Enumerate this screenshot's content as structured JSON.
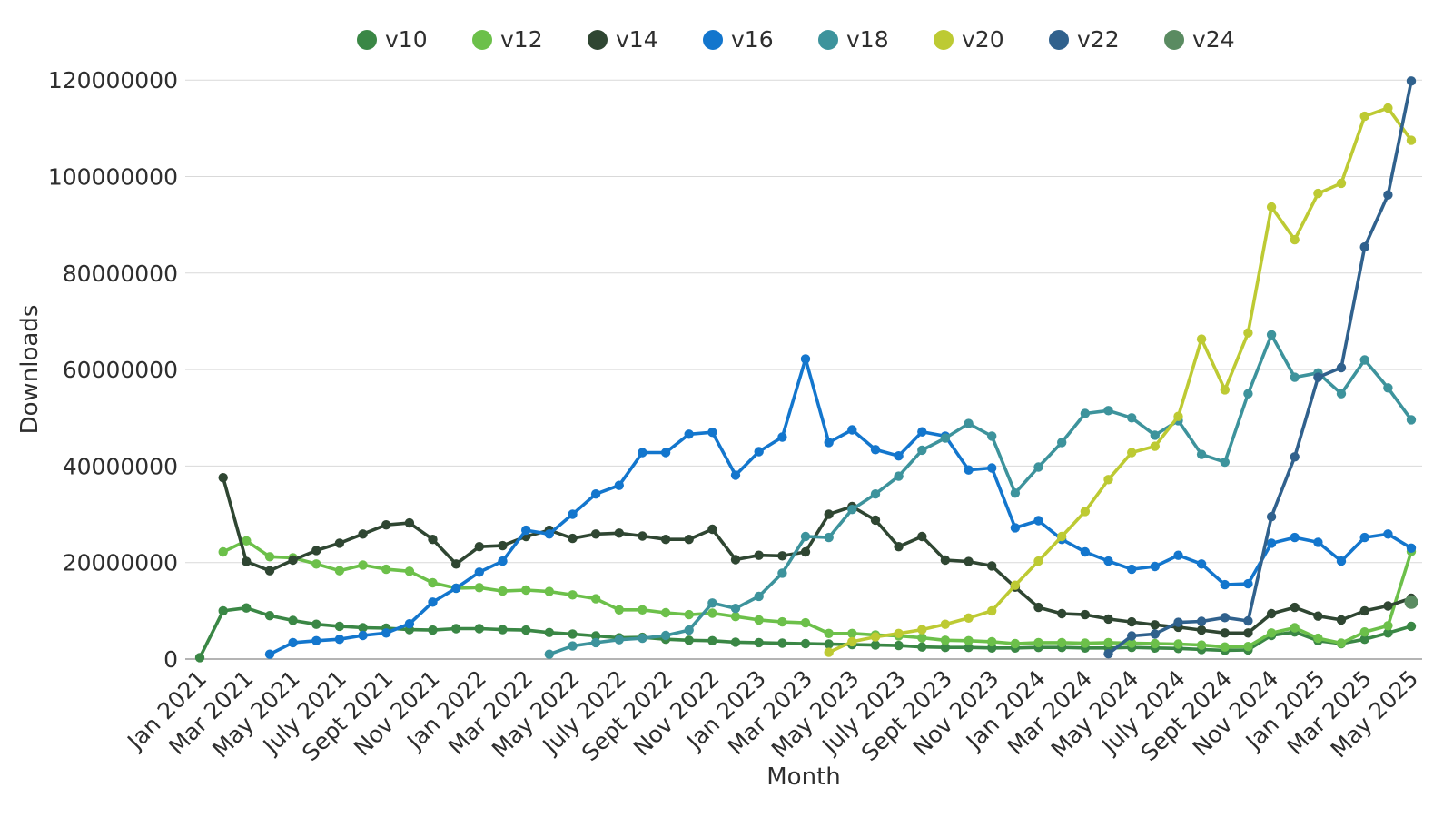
{
  "page": {
    "background": "#ffffff"
  },
  "chart_data": {
    "type": "line",
    "title": "",
    "xlabel": "Month",
    "ylabel": "Downloads",
    "values_unit": "millions_of_downloads",
    "ylim": [
      0,
      120000000
    ],
    "grid": "horizontal",
    "legend_position": "top-center",
    "y_tick_labels": [
      "0",
      "20000000",
      "40000000",
      "60000000",
      "80000000",
      "100000000",
      "120000000"
    ],
    "x_tick_every": 2,
    "x_tick_labels": [
      "Jan 2021",
      "Mar 2021",
      "May 2021",
      "July 2021",
      "Sept 2021",
      "Nov 2021",
      "Jan 2022",
      "Mar 2022",
      "May 2022",
      "July 2022",
      "Sept 2022",
      "Nov 2022",
      "Jan 2023",
      "Mar 2023",
      "May 2023",
      "July 2023",
      "Sept 2023",
      "Nov 2023",
      "Jan 2024",
      "Mar 2024",
      "May 2024",
      "July 2024",
      "Sept 2024",
      "Nov 2024",
      "Jan 2025",
      "Mar 2025",
      "May 2025"
    ],
    "months": [
      "Jan 2021",
      "Feb 2021",
      "Mar 2021",
      "Apr 2021",
      "May 2021",
      "Jun 2021",
      "Jul 2021",
      "Aug 2021",
      "Sep 2021",
      "Oct 2021",
      "Nov 2021",
      "Dec 2021",
      "Jan 2022",
      "Feb 2022",
      "Mar 2022",
      "Apr 2022",
      "May 2022",
      "Jun 2022",
      "Jul 2022",
      "Aug 2022",
      "Sep 2022",
      "Oct 2022",
      "Nov 2022",
      "Dec 2022",
      "Jan 2023",
      "Feb 2023",
      "Mar 2023",
      "Apr 2023",
      "May 2023",
      "Jun 2023",
      "Jul 2023",
      "Aug 2023",
      "Sep 2023",
      "Oct 2023",
      "Nov 2023",
      "Dec 2023",
      "Jan 2024",
      "Feb 2024",
      "Mar 2024",
      "Apr 2024",
      "May 2024",
      "Jun 2024",
      "Jul 2024",
      "Aug 2024",
      "Sep 2024",
      "Oct 2024",
      "Nov 2024",
      "Dec 2024",
      "Jan 2025",
      "Feb 2025",
      "Mar 2025",
      "Apr 2025",
      "May 2025"
    ],
    "series": [
      {
        "name": "v10",
        "color": "#3a8745",
        "values": [
          0.3,
          10.0,
          10.6,
          9.0,
          8.0,
          7.2,
          6.8,
          6.5,
          6.4,
          6.1,
          6.0,
          6.3,
          6.3,
          6.1,
          6.0,
          5.5,
          5.2,
          4.8,
          4.4,
          4.5,
          4.1,
          3.9,
          3.8,
          3.5,
          3.4,
          3.3,
          3.2,
          3.1,
          3.0,
          2.9,
          2.8,
          2.5,
          2.4,
          2.4,
          2.3,
          2.3,
          2.4,
          2.4,
          2.3,
          2.3,
          2.4,
          2.3,
          2.2,
          2.0,
          1.8,
          1.9,
          4.9,
          5.6,
          3.8,
          3.2,
          4.1,
          5.4,
          6.8
        ]
      },
      {
        "name": "v12",
        "color": "#6cc04a",
        "values": [
          null,
          22.2,
          24.5,
          21.2,
          21.0,
          19.7,
          18.3,
          19.5,
          18.6,
          18.2,
          15.8,
          14.7,
          14.8,
          14.1,
          14.3,
          14.0,
          13.3,
          12.5,
          10.2,
          10.2,
          9.6,
          9.2,
          9.5,
          8.8,
          8.1,
          7.7,
          7.5,
          5.3,
          5.3,
          5.0,
          4.8,
          4.4,
          3.9,
          3.8,
          3.6,
          3.2,
          3.4,
          3.4,
          3.3,
          3.4,
          3.3,
          3.2,
          3.1,
          2.9,
          2.5,
          2.6,
          5.4,
          6.5,
          4.3,
          3.3,
          5.6,
          6.9,
          22.3
        ]
      },
      {
        "name": "v14",
        "color": "#2f4632",
        "values": [
          null,
          37.6,
          20.2,
          18.3,
          20.5,
          22.5,
          24.0,
          25.9,
          27.8,
          28.2,
          24.8,
          19.7,
          23.3,
          23.5,
          25.4,
          26.7,
          25.0,
          25.9,
          26.1,
          25.5,
          24.8,
          24.8,
          26.9,
          20.6,
          21.5,
          21.4,
          22.2,
          30.0,
          31.6,
          28.8,
          23.3,
          25.4,
          20.5,
          20.2,
          19.3,
          14.9,
          10.7,
          9.4,
          9.2,
          8.3,
          7.7,
          7.1,
          6.6,
          6.0,
          5.4,
          5.4,
          9.4,
          10.7,
          8.9,
          8.1,
          10.0,
          11.0,
          12.6
        ]
      },
      {
        "name": "v16",
        "color": "#1376cd",
        "values": [
          null,
          null,
          null,
          1.0,
          3.4,
          3.8,
          4.1,
          4.9,
          5.4,
          7.3,
          11.8,
          14.7,
          18.0,
          20.3,
          26.7,
          25.9,
          30.0,
          34.2,
          36.0,
          42.8,
          42.8,
          46.6,
          47.0,
          38.1,
          43.0,
          46.0,
          62.2,
          44.9,
          47.5,
          43.4,
          42.1,
          47.1,
          46.2,
          39.2,
          39.6,
          27.2,
          28.7,
          24.8,
          22.2,
          20.3,
          18.6,
          19.2,
          21.5,
          19.7,
          15.4,
          15.6,
          24.0,
          25.2,
          24.2,
          20.3,
          25.2,
          25.9,
          23.0
        ]
      },
      {
        "name": "v18",
        "color": "#3d939c",
        "values": [
          null,
          null,
          null,
          null,
          null,
          null,
          null,
          null,
          null,
          null,
          null,
          null,
          null,
          null,
          null,
          1.0,
          2.7,
          3.4,
          4.0,
          4.3,
          4.9,
          6.0,
          11.6,
          10.5,
          13.0,
          17.8,
          25.4,
          25.2,
          31.0,
          34.2,
          37.9,
          43.3,
          45.8,
          48.8,
          46.2,
          34.4,
          39.8,
          44.9,
          50.9,
          51.5,
          50.0,
          46.4,
          49.4,
          42.4,
          40.8,
          55.0,
          67.2,
          58.4,
          59.3,
          55.0,
          62.0,
          56.2,
          49.6
        ]
      },
      {
        "name": "v20",
        "color": "#bdca33",
        "values": [
          null,
          null,
          null,
          null,
          null,
          null,
          null,
          null,
          null,
          null,
          null,
          null,
          null,
          null,
          null,
          null,
          null,
          null,
          null,
          null,
          null,
          null,
          null,
          null,
          null,
          null,
          null,
          1.4,
          3.6,
          4.6,
          5.3,
          6.1,
          7.2,
          8.5,
          10.0,
          15.3,
          20.3,
          25.4,
          30.6,
          37.2,
          42.8,
          44.1,
          50.3,
          66.3,
          55.8,
          67.6,
          93.7,
          86.9,
          96.5,
          98.6,
          112.5,
          114.2,
          107.5
        ]
      },
      {
        "name": "v22",
        "color": "#30618d",
        "values": [
          null,
          null,
          null,
          null,
          null,
          null,
          null,
          null,
          null,
          null,
          null,
          null,
          null,
          null,
          null,
          null,
          null,
          null,
          null,
          null,
          null,
          null,
          null,
          null,
          null,
          null,
          null,
          null,
          null,
          null,
          null,
          null,
          null,
          null,
          null,
          null,
          null,
          null,
          null,
          1.1,
          4.8,
          5.2,
          7.6,
          7.8,
          8.6,
          7.9,
          29.5,
          41.9,
          58.4,
          60.4,
          85.4,
          96.2,
          119.8
        ]
      },
      {
        "name": "v24",
        "color": "#5a8b61",
        "values": [
          null,
          null,
          null,
          null,
          null,
          null,
          null,
          null,
          null,
          null,
          null,
          null,
          null,
          null,
          null,
          null,
          null,
          null,
          null,
          null,
          null,
          null,
          null,
          null,
          null,
          null,
          null,
          null,
          null,
          null,
          null,
          null,
          null,
          null,
          null,
          null,
          null,
          null,
          null,
          null,
          null,
          null,
          null,
          null,
          null,
          null,
          null,
          null,
          null,
          null,
          null,
          null,
          11.8
        ]
      }
    ]
  }
}
